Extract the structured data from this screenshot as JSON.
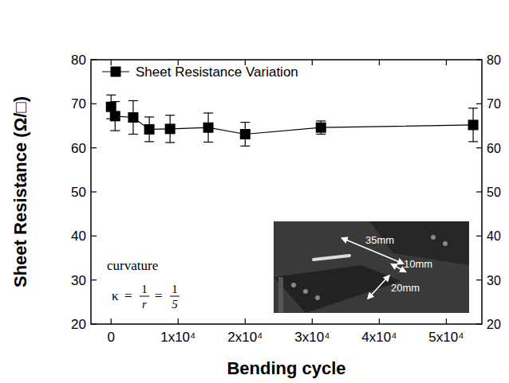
{
  "chart_data": {
    "type": "line",
    "x_label": "Bending cycle",
    "y_label": "Sheet Resistance (Ω/□)",
    "x": [
      0,
      600,
      3300,
      5700,
      8800,
      14500,
      20000,
      31300,
      54000
    ],
    "series": [
      {
        "name": "Sheet Resistance Variation",
        "color": "#000000",
        "marker": "square",
        "line_style": "solid",
        "values": [
          69.3,
          67.2,
          66.9,
          64.2,
          64.3,
          64.6,
          63.1,
          64.6,
          65.2
        ],
        "errors": [
          2.7,
          3.3,
          3.8,
          2.8,
          3.1,
          3.3,
          2.7,
          1.5,
          3.8
        ]
      }
    ],
    "xlim": [
      -3000,
      55300
    ],
    "ylim": [
      20,
      80
    ],
    "xticks": [
      0,
      {
        "value": 10000,
        "label": "1x10⁴"
      },
      {
        "value": 20000,
        "label": "2x10⁴"
      },
      {
        "value": 30000,
        "label": "3x10⁴"
      },
      {
        "value": 40000,
        "label": "4x10⁴"
      },
      {
        "value": 50000,
        "label": "5x10⁴"
      }
    ],
    "yticks": [
      20,
      30,
      40,
      50,
      60,
      70,
      80
    ],
    "legend": "top-left",
    "grid": false,
    "annotations": {
      "curvature": "curvature",
      "formula": {
        "lhs": "κ",
        "eq": "=",
        "fractions": [
          {
            "num": "1",
            "den": "r"
          },
          {
            "num": "1",
            "den": "5"
          }
        ]
      },
      "inset_labels": [
        "35mm",
        "10mm",
        "20mm"
      ]
    }
  }
}
